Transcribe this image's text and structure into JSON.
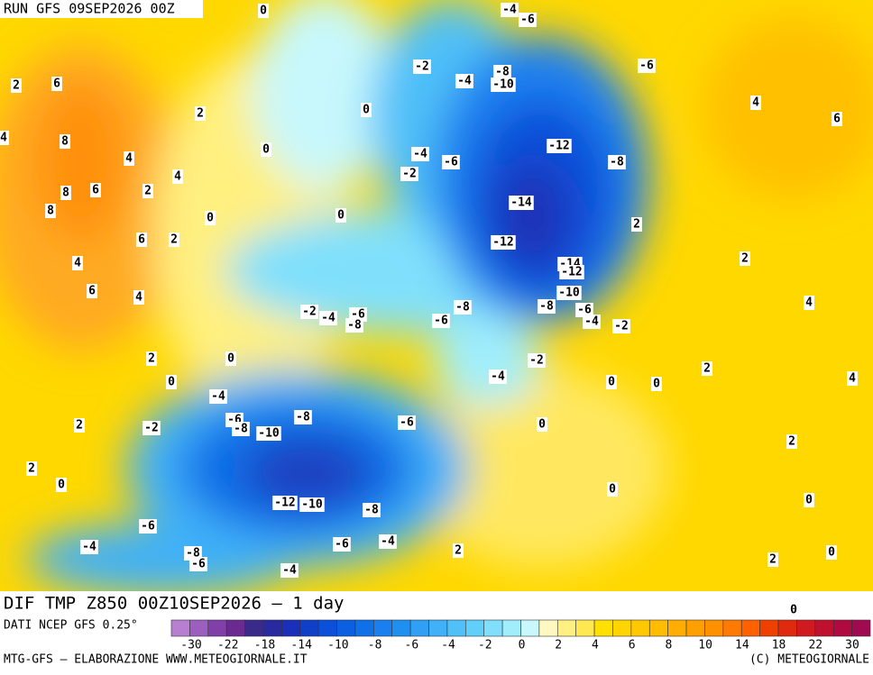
{
  "header": {
    "run": "RUN GFS 09SEP2026 00Z"
  },
  "map": {
    "contour_labels": [
      0,
      -4,
      -6,
      -2,
      -4,
      -8,
      -10,
      -6,
      2,
      6,
      2,
      0,
      4,
      6,
      4,
      8,
      0,
      -4,
      -6,
      -12,
      -8,
      4,
      4,
      -2,
      8,
      6,
      2,
      -14,
      8,
      0,
      0,
      2,
      6,
      2,
      -12,
      2,
      4,
      -14,
      -12,
      6,
      4,
      -10,
      4,
      -2,
      -4,
      -6,
      -8,
      -8,
      -6,
      -8,
      -6,
      -4,
      -2,
      2,
      0,
      -2,
      2,
      0,
      -4,
      0,
      0,
      4,
      -4,
      -6,
      -8,
      -8,
      -6,
      -10,
      2,
      -2,
      0,
      2,
      2,
      0,
      0,
      0,
      -12,
      -10,
      -8,
      -6,
      -4,
      -6,
      -4,
      2,
      0,
      -8,
      -6,
      2,
      -4,
      0
    ]
  },
  "footer": {
    "title": "DIF TMP Z850 00Z10SEP2026 — 1 day",
    "source": "DATI NCEP GFS 0.25°",
    "credit": "MTG-GFS — ELABORAZIONE WWW.METEOGIORNALE.IT",
    "copyright": "(C) METEOGIORNALE"
  },
  "colorbar": {
    "ticks": [
      -30,
      -22,
      -18,
      -14,
      -10,
      -8,
      -6,
      -4,
      -2,
      0,
      2,
      4,
      6,
      8,
      10,
      14,
      18,
      22,
      30
    ],
    "colors": [
      "#b87fd0",
      "#9c5fc0",
      "#8040a8",
      "#6a2a90",
      "#3a2a8a",
      "#2a2aa0",
      "#1a30b8",
      "#1040c8",
      "#0a50d8",
      "#0a60e0",
      "#1070e8",
      "#1a80f0",
      "#2090f0",
      "#30a0f5",
      "#40b0f8",
      "#50c0f8",
      "#60d0fa",
      "#80e0fc",
      "#a0eefc",
      "#c8f8fc",
      "#fff8c0",
      "#fff080",
      "#ffe850",
      "#ffe000",
      "#ffd400",
      "#ffc800",
      "#ffbc00",
      "#ffae00",
      "#ffa000",
      "#ff9000",
      "#ff7a00",
      "#ff6000",
      "#f04000",
      "#e02a10",
      "#d01a20",
      "#c01030",
      "#b00a40",
      "#a00a50"
    ]
  }
}
